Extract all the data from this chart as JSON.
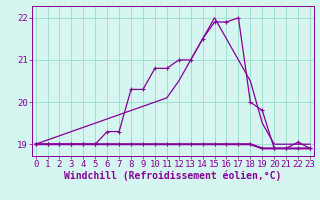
{
  "xlabel": "Windchill (Refroidissement éolien,°C)",
  "background_color": "#d4f5f0",
  "grid_color": "#99ddcc",
  "line_color": "#880099",
  "x_hours": [
    0,
    1,
    2,
    3,
    4,
    5,
    6,
    7,
    8,
    9,
    10,
    11,
    12,
    13,
    14,
    15,
    16,
    17,
    18,
    19,
    20,
    21,
    22,
    23
  ],
  "y_temp": [
    19.0,
    19.1,
    19.2,
    19.3,
    19.4,
    19.5,
    19.6,
    19.7,
    19.8,
    19.9,
    20.0,
    20.1,
    20.5,
    21.0,
    21.5,
    22.0,
    21.5,
    21.0,
    20.5,
    19.5,
    19.0,
    19.0,
    19.0,
    19.0
  ],
  "y_wc": [
    19.0,
    19.0,
    19.0,
    19.0,
    19.0,
    19.0,
    19.3,
    19.3,
    20.3,
    20.3,
    20.8,
    20.8,
    21.0,
    21.0,
    21.5,
    21.9,
    21.9,
    22.0,
    20.0,
    19.8,
    18.9,
    18.9,
    19.05,
    18.9
  ],
  "y_flat": [
    19.0,
    19.0,
    19.0,
    19.0,
    19.0,
    19.0,
    19.0,
    19.0,
    19.0,
    19.0,
    19.0,
    19.0,
    19.0,
    19.0,
    19.0,
    19.0,
    19.0,
    19.0,
    19.0,
    18.9,
    18.9,
    18.9,
    18.9,
    18.9
  ],
  "ylim": [
    18.72,
    22.28
  ],
  "yticks": [
    19,
    20,
    21,
    22
  ],
  "xticks": [
    0,
    1,
    2,
    3,
    4,
    5,
    6,
    7,
    8,
    9,
    10,
    11,
    12,
    13,
    14,
    15,
    16,
    17,
    18,
    19,
    20,
    21,
    22,
    23
  ],
  "xlabel_fontsize": 7,
  "tick_fontsize": 6.5,
  "marker": "+"
}
